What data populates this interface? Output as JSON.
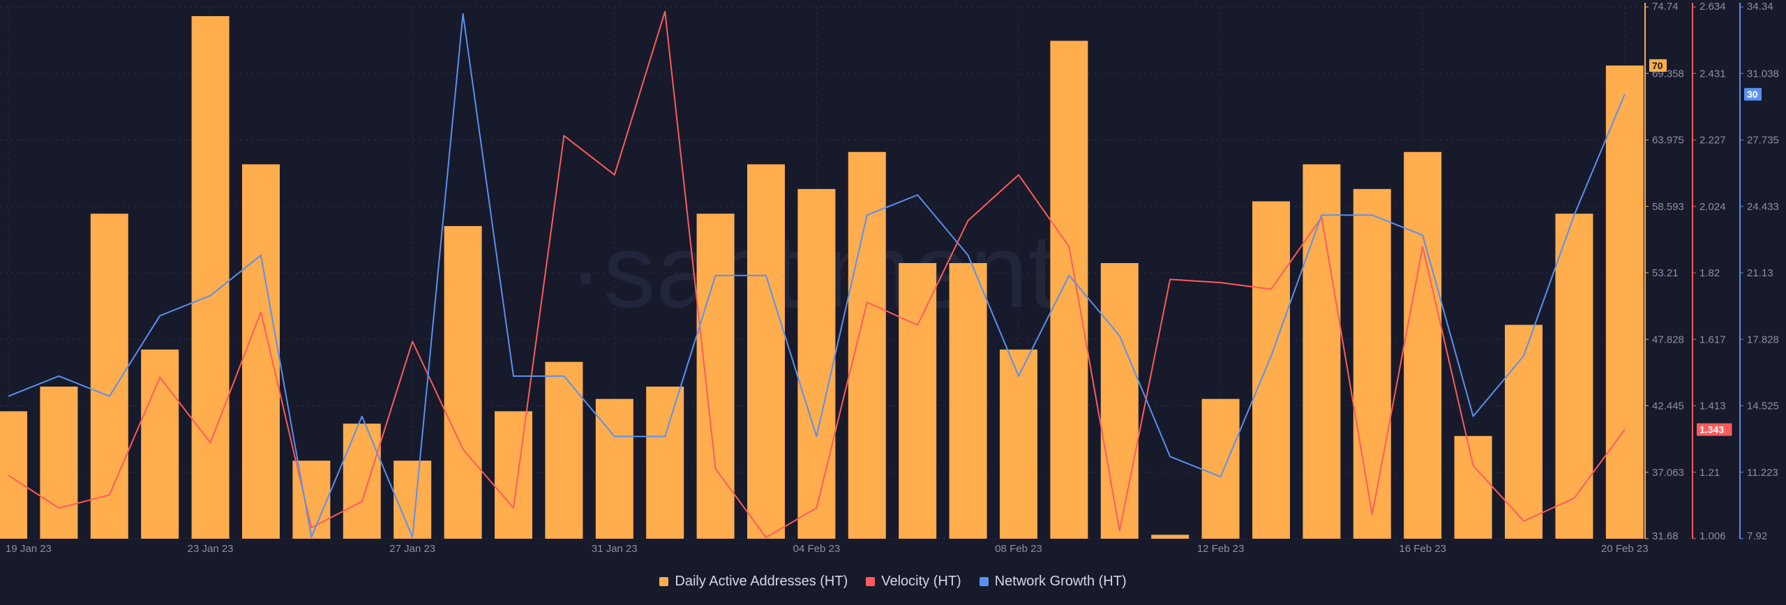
{
  "watermark": "·santiment·",
  "colors": {
    "background": "#171a2b",
    "grid": "#2a2e42",
    "daa": "#ffad4d",
    "velocity": "#ff5b5b",
    "network": "#5a90f0"
  },
  "chart_data": {
    "type": "bar",
    "grid": true,
    "legend_position": "bottom-center",
    "x_tick_labels": [
      "19 Jan 23",
      "23 Jan 23",
      "27 Jan 23",
      "31 Jan 23",
      "04 Feb 23",
      "08 Feb 23",
      "12 Feb 23",
      "16 Feb 23",
      "20 Feb 23"
    ],
    "axes": {
      "daa": {
        "range": [
          31.68,
          74.74
        ],
        "ticks": [
          "74.74",
          "69.358",
          "63.975",
          "58.593",
          "53.21",
          "47.828",
          "42.445",
          "37.063",
          "31.68"
        ]
      },
      "velocity": {
        "range": [
          1.006,
          2.634
        ],
        "ticks": [
          "2.634",
          "2.431",
          "2.227",
          "2.024",
          "1.82",
          "1.617",
          "1.413",
          "1.21",
          "1.006"
        ]
      },
      "network": {
        "range": [
          7.92,
          34.34
        ],
        "ticks": [
          "34.34",
          "31.038",
          "27.735",
          "24.433",
          "21.13",
          "17.828",
          "14.525",
          "11.223",
          "7.92"
        ]
      }
    },
    "series": [
      {
        "name": "Daily Active Addresses (HT)",
        "type": "bar",
        "axis": "daa",
        "color": "#ffad4d",
        "last_value": "70",
        "values": [
          42,
          44,
          58,
          47,
          74,
          62,
          38,
          41,
          38,
          57,
          42,
          46,
          43,
          44,
          58,
          62,
          60,
          63,
          54,
          54,
          47,
          72,
          54,
          32,
          43,
          59,
          62,
          60,
          63,
          40,
          49,
          58,
          70
        ]
      },
      {
        "name": "Velocity (HT)",
        "type": "line",
        "axis": "velocity",
        "color": "#ff5b5b",
        "last_value": "1.343",
        "values": [
          1.2,
          1.1,
          1.14,
          1.5,
          1.3,
          1.7,
          1.04,
          1.12,
          1.61,
          1.28,
          1.1,
          2.24,
          2.12,
          2.62,
          1.22,
          1.01,
          1.1,
          1.73,
          1.66,
          1.98,
          2.12,
          1.9,
          1.03,
          1.8,
          1.79,
          1.77,
          1.99,
          1.08,
          1.9,
          1.23,
          1.06,
          1.13,
          1.34
        ]
      },
      {
        "name": "Network Growth (HT)",
        "type": "line",
        "axis": "network",
        "color": "#5a90f0",
        "last_value": "30",
        "values": [
          15,
          16,
          15,
          19,
          20,
          22,
          8,
          14,
          8,
          34,
          16,
          16,
          13,
          13,
          21,
          21,
          13,
          24,
          25,
          22,
          16,
          21,
          18,
          12,
          11,
          17,
          24,
          24,
          23,
          14,
          17,
          24,
          30
        ]
      }
    ]
  }
}
